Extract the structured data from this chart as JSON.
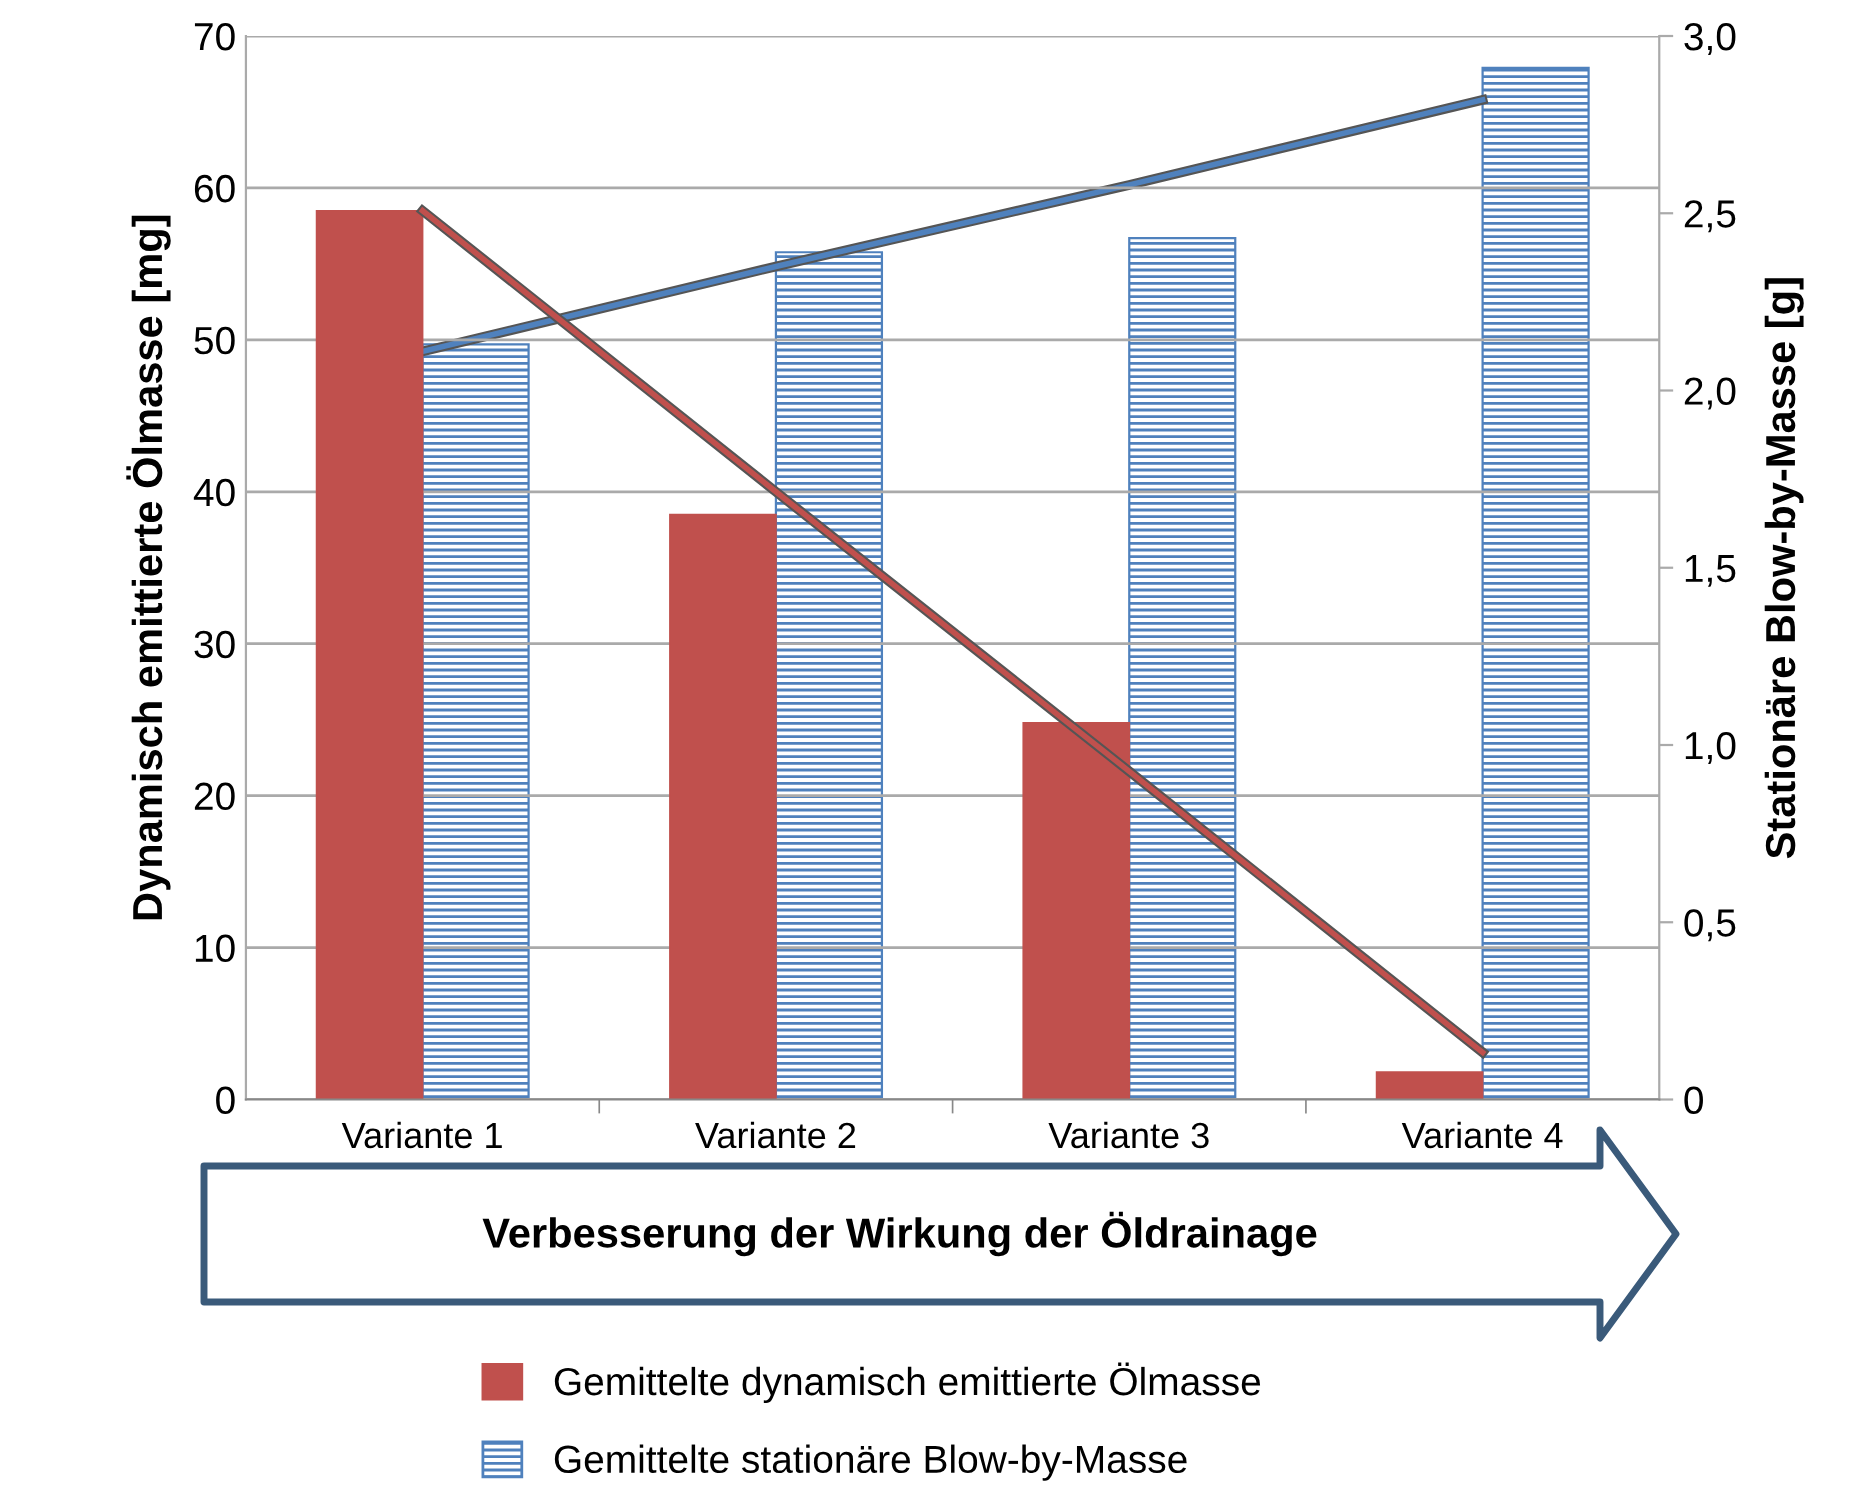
{
  "chart_data": {
    "type": "bar",
    "categories": [
      "Variante 1",
      "Variante 2",
      "Variante 3",
      "Variante 4"
    ],
    "series": [
      {
        "name": "Gemittelte dynamisch emittierte Ölmasse",
        "axis": "y",
        "color": "#c0504d",
        "values": [
          58.5,
          38.5,
          24.8,
          1.8
        ]
      },
      {
        "name": "Gemittelte stationäre Blow-by-Masse",
        "axis": "y2",
        "color": "#4f81bd",
        "values": [
          2.13,
          2.39,
          2.43,
          2.91
        ]
      },
      {
        "type": "line",
        "axis": "y",
        "color": "#c0504d",
        "values": [
          58.5,
          40.0,
          21.6,
          3.1
        ]
      },
      {
        "type": "line",
        "axis": "y2",
        "color": "#4f81bd",
        "values": [
          2.11,
          2.35,
          2.58,
          2.82
        ]
      }
    ],
    "ylabel": "Dynamisch emittierte Ölmasse [mg]",
    "y2label": "Stationäre Blow-by-Masse [g]",
    "ylim": [
      0,
      70
    ],
    "yticks": [
      0,
      10,
      20,
      30,
      40,
      50,
      60,
      70
    ],
    "y2lim": [
      0,
      3.0
    ],
    "y2ticks": [
      0,
      {
        "value": 0.5,
        "label": "0,5"
      },
      {
        "value": 1.0,
        "label": "1,0"
      },
      {
        "value": 1.5,
        "label": "1,5"
      },
      {
        "value": 2.0,
        "label": "2,0"
      },
      {
        "value": 2.5,
        "label": "2,5"
      },
      {
        "value": 3.0,
        "label": "3,0"
      }
    ],
    "annotations": [
      "Verbesserung der Wirkung der Öldrainage"
    ],
    "grid": "y",
    "legend": "bottom"
  }
}
